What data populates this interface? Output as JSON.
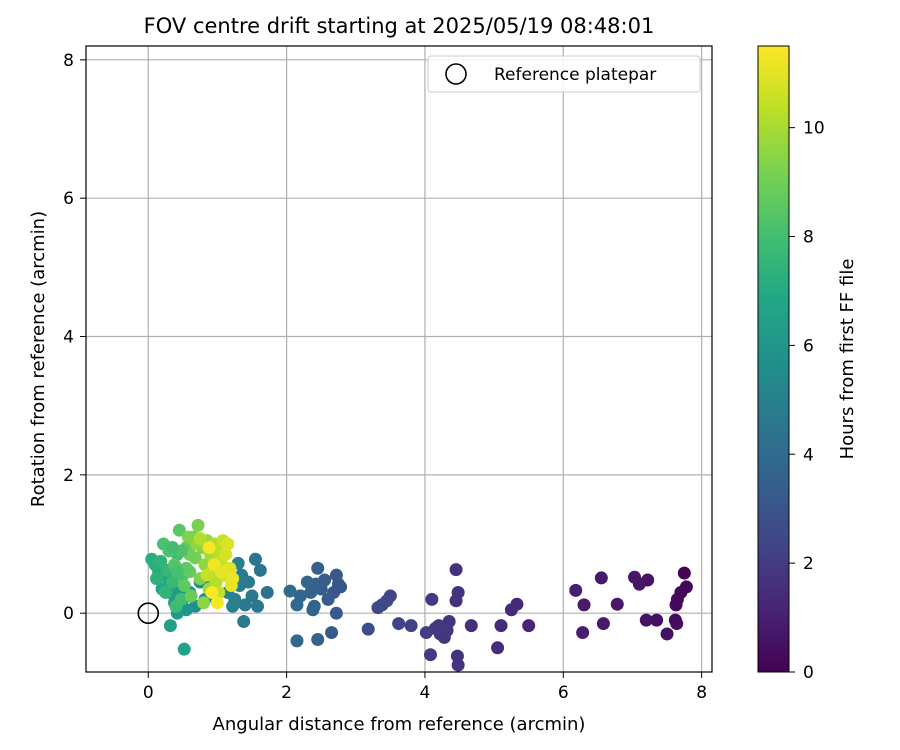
{
  "chart_data": {
    "type": "scatter",
    "title": "FOV centre drift starting at 2025/05/19 08:48:01",
    "xlabel": "Angular distance from reference (arcmin)",
    "ylabel": "Rotation from reference (arcmin)",
    "xlim": [
      -0.9,
      8.15
    ],
    "ylim": [
      -0.85,
      8.2
    ],
    "xticks": [
      0,
      2,
      4,
      6,
      8
    ],
    "yticks": [
      0,
      2,
      4,
      6,
      8
    ],
    "grid": true,
    "legend_position": "upper-right",
    "colorbar": {
      "label": "Hours from first FF file",
      "colormap": "viridis",
      "range": [
        0,
        11.5
      ],
      "ticks": [
        0,
        2,
        4,
        6,
        8,
        10
      ]
    },
    "reference_marker": {
      "label": "Reference platepar",
      "x": 0,
      "y": 0
    },
    "points": [
      [
        7.75,
        0.58,
        0.05
      ],
      [
        7.78,
        0.38,
        0.1
      ],
      [
        7.7,
        0.3,
        0.2
      ],
      [
        7.65,
        0.2,
        0.25
      ],
      [
        7.63,
        0.12,
        0.3
      ],
      [
        7.62,
        -0.1,
        0.35
      ],
      [
        7.64,
        -0.15,
        0.4
      ],
      [
        7.5,
        -0.3,
        0.45
      ],
      [
        7.35,
        -0.1,
        0.5
      ],
      [
        7.2,
        -0.1,
        0.55
      ],
      [
        7.22,
        0.48,
        0.6
      ],
      [
        7.1,
        0.42,
        0.65
      ],
      [
        7.03,
        0.52,
        0.7
      ],
      [
        6.78,
        0.13,
        0.75
      ],
      [
        6.58,
        -0.15,
        0.8
      ],
      [
        6.55,
        0.51,
        0.85
      ],
      [
        6.3,
        0.12,
        0.9
      ],
      [
        6.28,
        -0.28,
        0.95
      ],
      [
        6.18,
        0.33,
        1.0
      ],
      [
        5.5,
        -0.18,
        1.2
      ],
      [
        5.33,
        0.13,
        1.3
      ],
      [
        5.25,
        0.05,
        1.35
      ],
      [
        5.1,
        -0.18,
        1.4
      ],
      [
        5.05,
        -0.5,
        1.45
      ],
      [
        4.67,
        -0.18,
        1.55
      ],
      [
        4.48,
        0.3,
        1.6
      ],
      [
        4.45,
        0.18,
        1.62
      ],
      [
        4.45,
        0.63,
        1.65
      ],
      [
        4.47,
        -0.62,
        1.68
      ],
      [
        4.48,
        -0.75,
        1.7
      ],
      [
        4.35,
        -0.12,
        1.75
      ],
      [
        4.32,
        -0.25,
        1.8
      ],
      [
        4.28,
        -0.35,
        1.82
      ],
      [
        4.22,
        -0.3,
        1.85
      ],
      [
        4.2,
        -0.18,
        1.88
      ],
      [
        4.15,
        -0.22,
        1.9
      ],
      [
        4.1,
        0.2,
        1.95
      ],
      [
        4.08,
        -0.6,
        2.0
      ],
      [
        4.02,
        -0.28,
        2.05
      ],
      [
        3.8,
        -0.18,
        2.2
      ],
      [
        3.62,
        -0.15,
        2.3
      ],
      [
        3.5,
        0.25,
        2.4
      ],
      [
        3.45,
        0.18,
        2.45
      ],
      [
        3.38,
        0.12,
        2.5
      ],
      [
        3.32,
        0.08,
        2.55
      ],
      [
        3.18,
        -0.23,
        2.7
      ],
      [
        2.78,
        0.38,
        3.0
      ],
      [
        2.75,
        0.42,
        3.05
      ],
      [
        2.72,
        0.55,
        3.1
      ],
      [
        2.68,
        0.3,
        3.15
      ],
      [
        2.72,
        0.0,
        3.2
      ],
      [
        2.65,
        -0.28,
        3.25
      ],
      [
        2.6,
        0.2,
        3.3
      ],
      [
        2.55,
        0.48,
        3.35
      ],
      [
        2.5,
        0.35,
        3.4
      ],
      [
        2.45,
        0.65,
        3.45
      ],
      [
        2.42,
        0.42,
        3.5
      ],
      [
        2.4,
        0.1,
        3.55
      ],
      [
        2.35,
        0.3,
        3.6
      ],
      [
        2.45,
        -0.38,
        3.65
      ],
      [
        2.38,
        0.05,
        3.7
      ],
      [
        2.3,
        0.45,
        3.75
      ],
      [
        2.2,
        0.25,
        3.8
      ],
      [
        2.15,
        0.12,
        3.85
      ],
      [
        2.15,
        -0.4,
        3.9
      ],
      [
        2.05,
        0.32,
        3.95
      ],
      [
        1.72,
        0.3,
        4.3
      ],
      [
        1.62,
        0.62,
        4.4
      ],
      [
        1.55,
        0.78,
        4.5
      ],
      [
        1.58,
        0.1,
        4.55
      ],
      [
        1.5,
        0.25,
        4.6
      ],
      [
        1.45,
        0.45,
        4.65
      ],
      [
        1.4,
        0.12,
        4.7
      ],
      [
        1.38,
        -0.12,
        4.75
      ],
      [
        1.35,
        0.55,
        4.8
      ],
      [
        1.32,
        0.4,
        4.85
      ],
      [
        1.3,
        0.72,
        4.9
      ],
      [
        1.25,
        0.2,
        4.95
      ],
      [
        1.22,
        0.1,
        5.0
      ],
      [
        1.15,
        0.3,
        5.1
      ],
      [
        1.1,
        0.55,
        5.2
      ],
      [
        0.98,
        0.25,
        5.3
      ],
      [
        0.9,
        0.4,
        5.4
      ],
      [
        0.82,
        0.2,
        5.5
      ],
      [
        0.75,
        0.45,
        5.6
      ],
      [
        0.68,
        0.1,
        5.7
      ],
      [
        0.6,
        0.3,
        5.8
      ],
      [
        0.55,
        0.05,
        5.9
      ],
      [
        0.5,
        0.2,
        6.0
      ],
      [
        0.45,
        0.35,
        6.1
      ],
      [
        0.42,
        0.0,
        6.2
      ],
      [
        0.38,
        0.15,
        6.3
      ],
      [
        0.35,
        0.28,
        6.4
      ],
      [
        0.32,
        -0.18,
        6.5
      ],
      [
        0.52,
        -0.52,
        6.6
      ],
      [
        0.3,
        0.45,
        6.7
      ],
      [
        0.25,
        0.55,
        6.8
      ],
      [
        0.2,
        0.35,
        6.9
      ],
      [
        0.15,
        0.6,
        7.0
      ],
      [
        0.1,
        0.7,
        7.1
      ],
      [
        0.05,
        0.78,
        7.2
      ],
      [
        0.12,
        0.5,
        7.3
      ],
      [
        0.18,
        0.75,
        7.4
      ],
      [
        0.25,
        0.3,
        7.5
      ],
      [
        0.28,
        0.62,
        7.6
      ],
      [
        0.35,
        0.45,
        7.7
      ],
      [
        0.4,
        0.1,
        7.8
      ],
      [
        0.42,
        0.85,
        7.9
      ],
      [
        0.48,
        0.2,
        8.0
      ],
      [
        0.5,
        0.55,
        8.1
      ],
      [
        0.22,
        1.0,
        8.2
      ],
      [
        0.3,
        0.9,
        8.3
      ],
      [
        0.38,
        0.7,
        8.4
      ],
      [
        0.45,
        1.2,
        8.5
      ],
      [
        0.52,
        0.4,
        8.6
      ],
      [
        0.55,
        0.95,
        8.7
      ],
      [
        0.6,
        0.6,
        8.8
      ],
      [
        0.62,
        0.25,
        8.9
      ],
      [
        0.65,
        1.1,
        9.0
      ],
      [
        0.68,
        0.8,
        9.1
      ],
      [
        0.72,
        1.27,
        9.2
      ],
      [
        0.75,
        0.5,
        9.3
      ],
      [
        0.78,
        0.95,
        9.4
      ],
      [
        0.8,
        0.15,
        9.5
      ],
      [
        0.82,
        0.7,
        9.6
      ],
      [
        0.85,
        1.05,
        9.7
      ],
      [
        0.88,
        0.35,
        9.8
      ],
      [
        0.9,
        0.85,
        9.9
      ],
      [
        0.92,
        0.6,
        10.0
      ],
      [
        0.95,
        1.0,
        10.1
      ],
      [
        0.98,
        0.45,
        10.2
      ],
      [
        1.0,
        0.9,
        10.3
      ],
      [
        1.02,
        0.3,
        10.4
      ],
      [
        1.05,
        0.75,
        10.5
      ],
      [
        1.08,
        1.05,
        10.6
      ],
      [
        1.1,
        0.55,
        10.7
      ],
      [
        1.12,
        0.85,
        10.8
      ],
      [
        1.15,
        1.0,
        10.9
      ],
      [
        1.18,
        0.65,
        11.0
      ],
      [
        1.2,
        0.4,
        11.1
      ],
      [
        1.22,
        0.5,
        11.2
      ],
      [
        1.0,
        0.15,
        11.3
      ],
      [
        0.95,
        0.7,
        11.35
      ],
      [
        0.88,
        0.95,
        11.4
      ],
      [
        0.92,
        0.3,
        11.45
      ],
      [
        0.7,
        1.0,
        9.6
      ],
      [
        0.6,
        0.85,
        9.0
      ],
      [
        0.55,
        0.65,
        8.6
      ],
      [
        0.48,
        0.9,
        8.3
      ],
      [
        0.42,
        0.6,
        8.1
      ],
      [
        0.35,
        0.95,
        7.9
      ],
      [
        0.58,
        1.1,
        9.3
      ],
      [
        0.75,
        1.08,
        10.2
      ],
      [
        0.85,
        0.55,
        10.5
      ],
      [
        1.05,
        0.6,
        11.1
      ]
    ]
  }
}
